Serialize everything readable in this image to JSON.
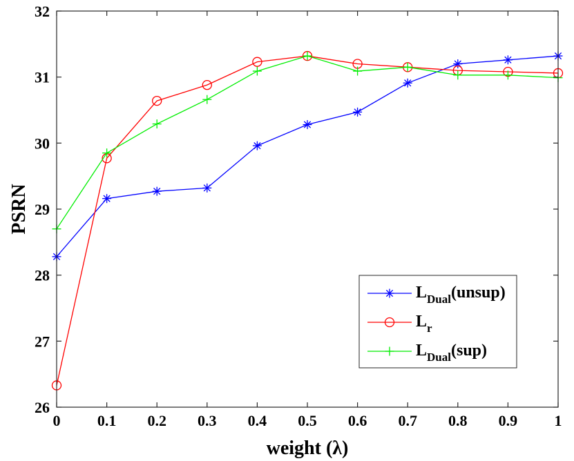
{
  "chart_data": {
    "type": "line",
    "title": "",
    "xlabel": "weight (λ)",
    "ylabel": "PSRN",
    "xlim": [
      0,
      1
    ],
    "ylim": [
      26,
      32
    ],
    "grid": false,
    "legend_position": "lower-right",
    "x": [
      0,
      0.1,
      0.2,
      0.3,
      0.4,
      0.5,
      0.6,
      0.7,
      0.8,
      0.9,
      1
    ],
    "x_tick_labels": [
      "0",
      "0.1",
      "0.2",
      "0.3",
      "0.4",
      "0.5",
      "0.6",
      "0.7",
      "0.8",
      "0.9",
      "1"
    ],
    "y_ticks": [
      26,
      27,
      28,
      29,
      30,
      31,
      32
    ],
    "y_tick_labels": [
      "26",
      "27",
      "28",
      "29",
      "30",
      "31",
      "32"
    ],
    "series": [
      {
        "name": "L_Dual(unsup)",
        "legend_main": "L",
        "legend_sub": "Dual",
        "legend_suffix": "(unsup)",
        "color": "#0000ff",
        "marker": "asterisk",
        "values": [
          28.28,
          29.16,
          29.27,
          29.32,
          29.96,
          30.28,
          30.47,
          30.91,
          31.2,
          31.26,
          31.32
        ]
      },
      {
        "name": "L_r",
        "legend_main": "L",
        "legend_sub": "r",
        "legend_suffix": "",
        "color": "#ff0000",
        "marker": "circle",
        "values": [
          26.33,
          29.77,
          30.64,
          30.88,
          31.23,
          31.32,
          31.2,
          31.15,
          31.1,
          31.08,
          31.06
        ]
      },
      {
        "name": "L_Dual(sup)",
        "legend_main": "L",
        "legend_sub": "Dual",
        "legend_suffix": "(sup)",
        "color": "#00ee00",
        "marker": "plus",
        "values": [
          28.7,
          29.85,
          30.29,
          30.66,
          31.09,
          31.32,
          31.09,
          31.15,
          31.03,
          31.03,
          30.99
        ]
      }
    ]
  }
}
